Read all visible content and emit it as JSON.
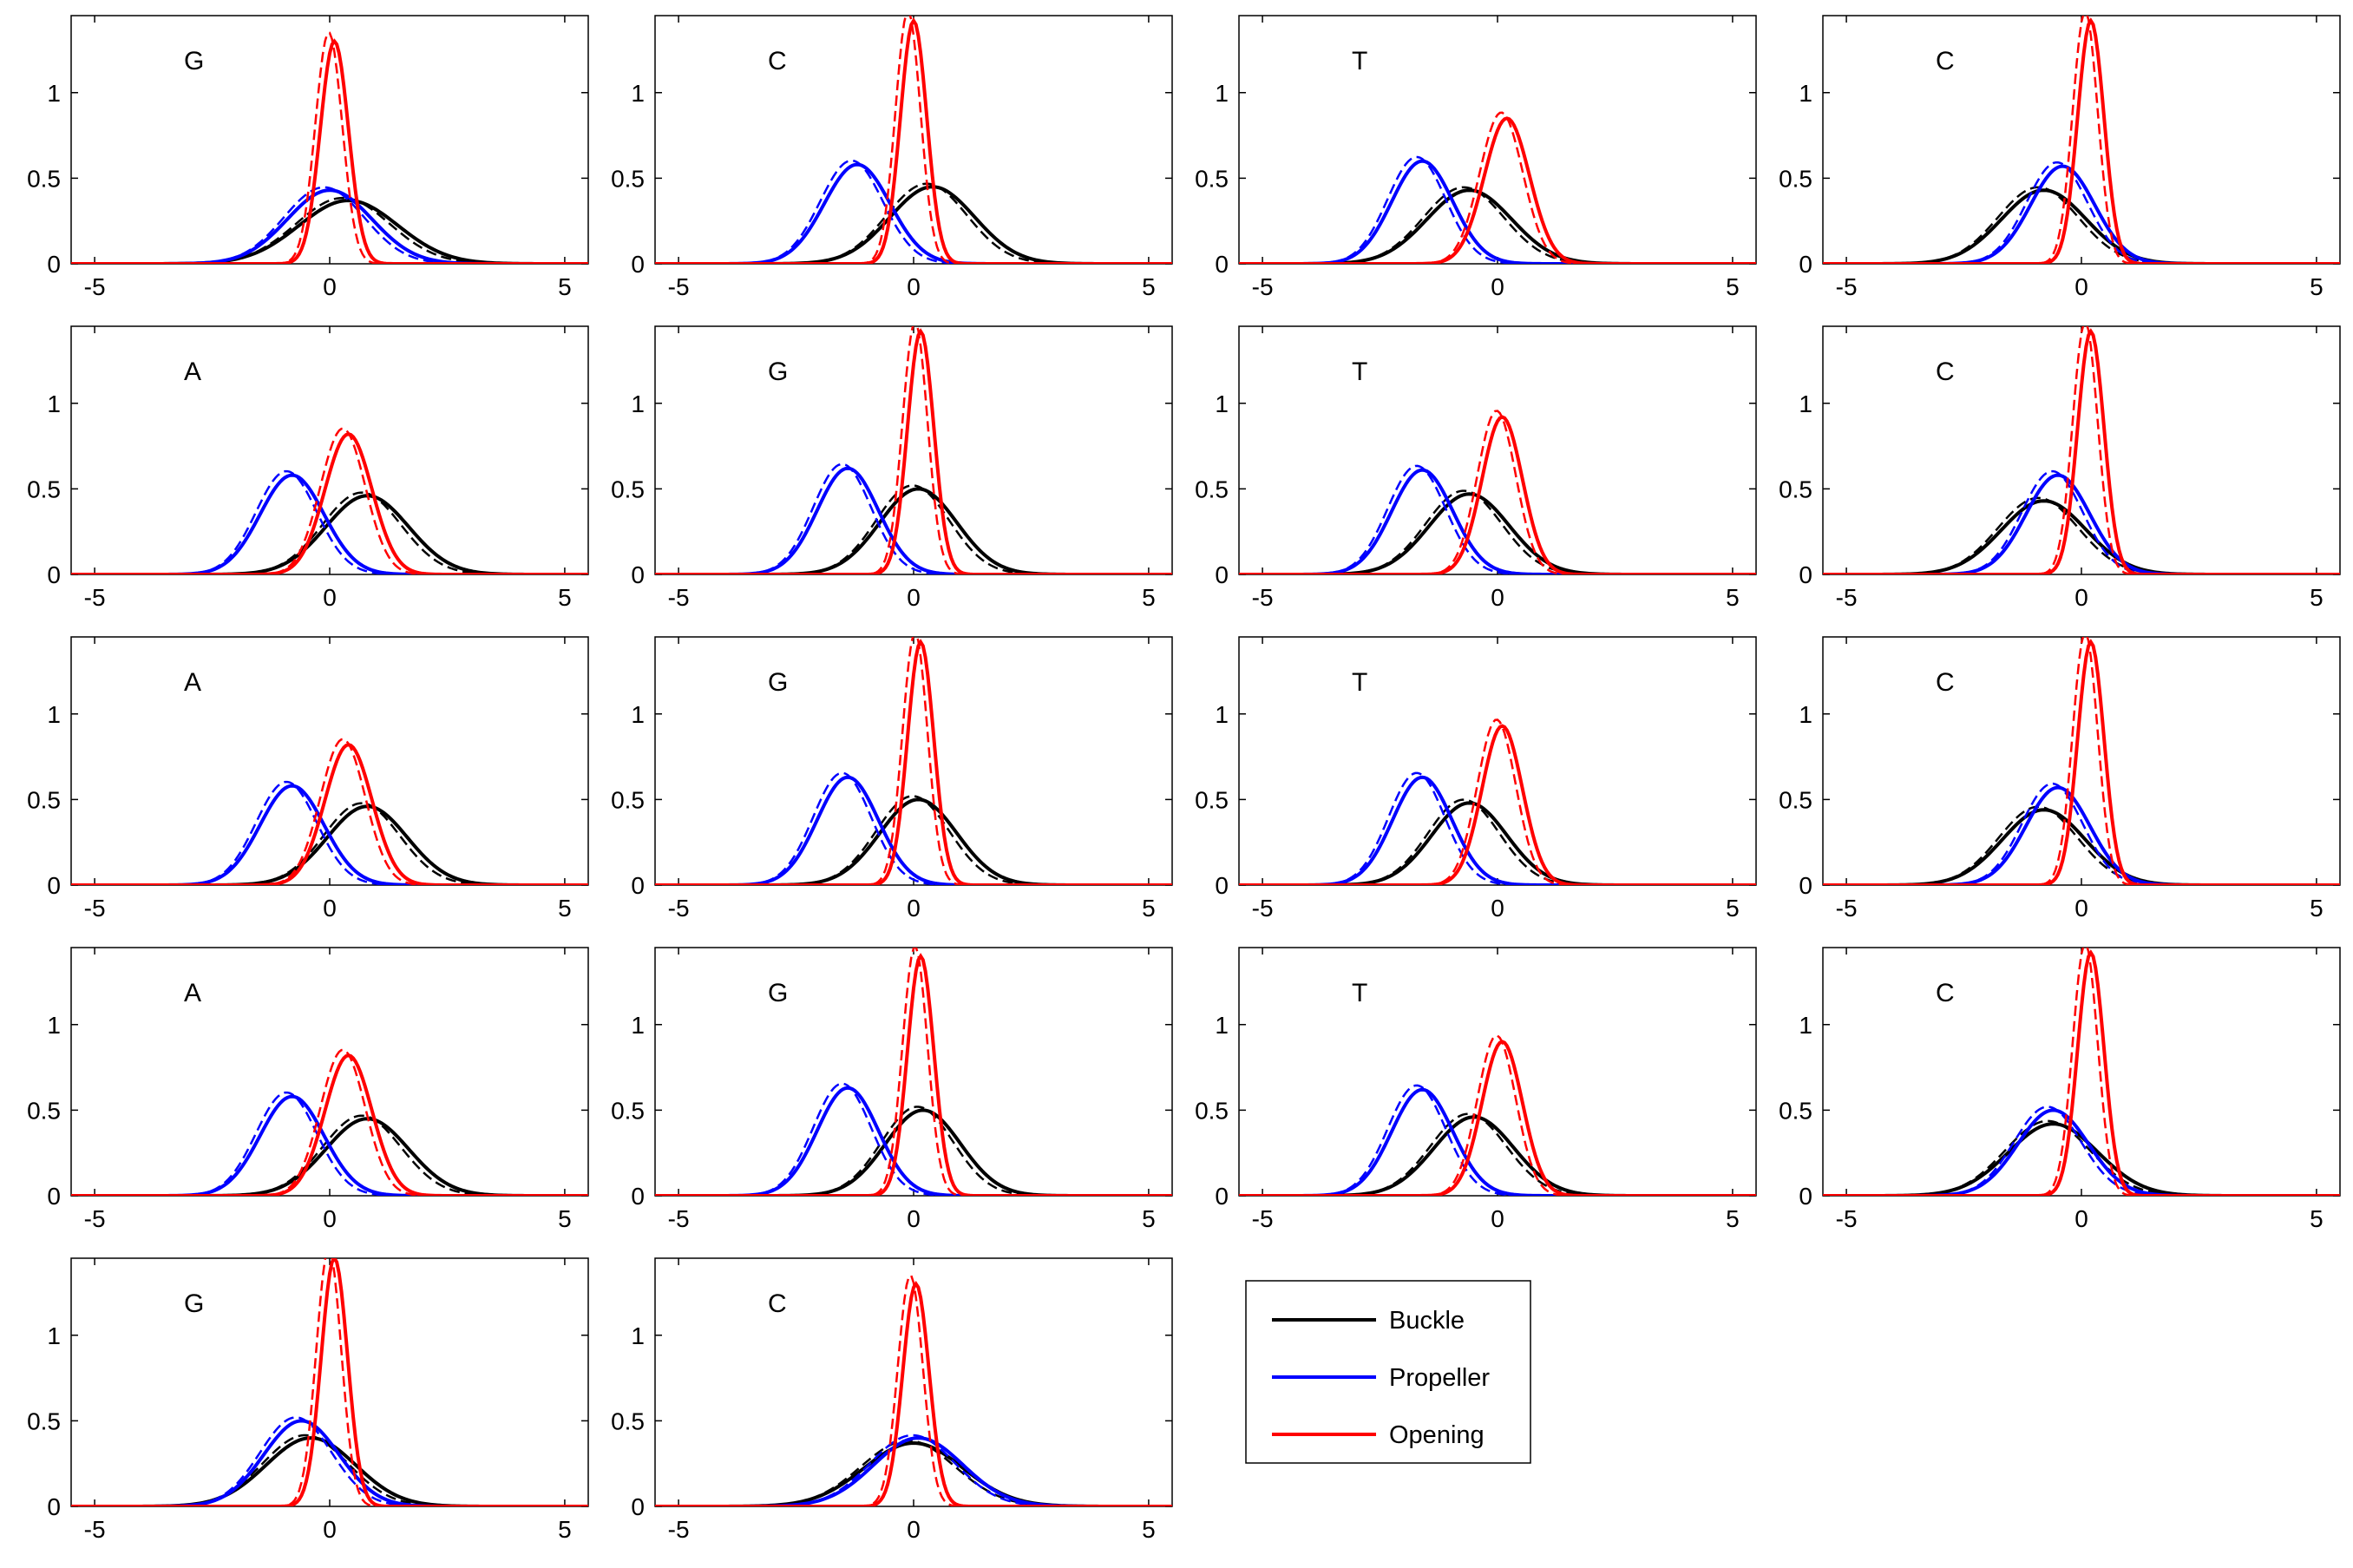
{
  "figure": {
    "legend": [
      {
        "name": "Buckle",
        "color": "#000000"
      },
      {
        "name": "Propeller",
        "color": "#0000ff"
      },
      {
        "name": "Opening",
        "color": "#ff0000"
      }
    ]
  },
  "chart_data": [
    {
      "type": "line",
      "title": "G",
      "xlim": [
        -5.5,
        5.5
      ],
      "ylim": [
        0,
        1.45
      ],
      "xticks": [
        -5,
        0,
        5
      ],
      "yticks": [
        0,
        0.5,
        1
      ],
      "grid": false,
      "series": [
        {
          "name": "Buckle",
          "color": "#000000",
          "mu": 0.4,
          "peak": 0.37,
          "sigma": 1.05
        },
        {
          "name": "Propeller",
          "color": "#0000ff",
          "mu": 0.0,
          "peak": 0.43,
          "sigma": 0.9
        },
        {
          "name": "Opening",
          "color": "#ff0000",
          "mu": 0.1,
          "peak": 1.3,
          "sigma": 0.3
        }
      ]
    },
    {
      "type": "line",
      "title": "C",
      "xlim": [
        -5.5,
        5.5
      ],
      "ylim": [
        0,
        1.45
      ],
      "xticks": [
        -5,
        0,
        5
      ],
      "yticks": [
        0,
        0.5,
        1
      ],
      "grid": false,
      "series": [
        {
          "name": "Buckle",
          "color": "#000000",
          "mu": 0.4,
          "peak": 0.45,
          "sigma": 0.9
        },
        {
          "name": "Propeller",
          "color": "#0000ff",
          "mu": -1.2,
          "peak": 0.58,
          "sigma": 0.7
        },
        {
          "name": "Opening",
          "color": "#ff0000",
          "mu": 0.0,
          "peak": 1.42,
          "sigma": 0.28
        }
      ]
    },
    {
      "type": "line",
      "title": "T",
      "xlim": [
        -5.5,
        5.5
      ],
      "ylim": [
        0,
        1.45
      ],
      "xticks": [
        -5,
        0,
        5
      ],
      "yticks": [
        0,
        0.5,
        1
      ],
      "grid": false,
      "series": [
        {
          "name": "Buckle",
          "color": "#000000",
          "mu": -0.6,
          "peak": 0.43,
          "sigma": 0.9
        },
        {
          "name": "Propeller",
          "color": "#0000ff",
          "mu": -1.6,
          "peak": 0.6,
          "sigma": 0.65
        },
        {
          "name": "Opening",
          "color": "#ff0000",
          "mu": 0.2,
          "peak": 0.85,
          "sigma": 0.48
        }
      ]
    },
    {
      "type": "line",
      "title": "C",
      "xlim": [
        -5.5,
        5.5
      ],
      "ylim": [
        0,
        1.45
      ],
      "xticks": [
        -5,
        0,
        5
      ],
      "yticks": [
        0,
        0.5,
        1
      ],
      "grid": false,
      "series": [
        {
          "name": "Buckle",
          "color": "#000000",
          "mu": -0.8,
          "peak": 0.43,
          "sigma": 0.9
        },
        {
          "name": "Propeller",
          "color": "#0000ff",
          "mu": -0.4,
          "peak": 0.57,
          "sigma": 0.68
        },
        {
          "name": "Opening",
          "color": "#ff0000",
          "mu": 0.2,
          "peak": 1.42,
          "sigma": 0.28
        }
      ]
    },
    {
      "type": "line",
      "title": "A",
      "xlim": [
        -5.5,
        5.5
      ],
      "ylim": [
        0,
        1.45
      ],
      "xticks": [
        -5,
        0,
        5
      ],
      "yticks": [
        0,
        0.5,
        1
      ],
      "grid": false,
      "series": [
        {
          "name": "Buckle",
          "color": "#000000",
          "mu": 0.8,
          "peak": 0.46,
          "sigma": 0.88
        },
        {
          "name": "Propeller",
          "color": "#0000ff",
          "mu": -0.8,
          "peak": 0.58,
          "sigma": 0.68
        },
        {
          "name": "Opening",
          "color": "#ff0000",
          "mu": 0.4,
          "peak": 0.82,
          "sigma": 0.5
        }
      ]
    },
    {
      "type": "line",
      "title": "G",
      "xlim": [
        -5.5,
        5.5
      ],
      "ylim": [
        0,
        1.45
      ],
      "xticks": [
        -5,
        0,
        5
      ],
      "yticks": [
        0,
        0.5,
        1
      ],
      "grid": false,
      "series": [
        {
          "name": "Buckle",
          "color": "#000000",
          "mu": 0.1,
          "peak": 0.5,
          "sigma": 0.82
        },
        {
          "name": "Propeller",
          "color": "#0000ff",
          "mu": -1.4,
          "peak": 0.62,
          "sigma": 0.65
        },
        {
          "name": "Opening",
          "color": "#ff0000",
          "mu": 0.15,
          "peak": 1.42,
          "sigma": 0.28
        }
      ]
    },
    {
      "type": "line",
      "title": "T",
      "xlim": [
        -5.5,
        5.5
      ],
      "ylim": [
        0,
        1.45
      ],
      "xticks": [
        -5,
        0,
        5
      ],
      "yticks": [
        0,
        0.5,
        1
      ],
      "grid": false,
      "series": [
        {
          "name": "Buckle",
          "color": "#000000",
          "mu": -0.6,
          "peak": 0.47,
          "sigma": 0.85
        },
        {
          "name": "Propeller",
          "color": "#0000ff",
          "mu": -1.6,
          "peak": 0.61,
          "sigma": 0.65
        },
        {
          "name": "Opening",
          "color": "#ff0000",
          "mu": 0.1,
          "peak": 0.92,
          "sigma": 0.43
        }
      ]
    },
    {
      "type": "line",
      "title": "C",
      "xlim": [
        -5.5,
        5.5
      ],
      "ylim": [
        0,
        1.45
      ],
      "xticks": [
        -5,
        0,
        5
      ],
      "yticks": [
        0,
        0.5,
        1
      ],
      "grid": false,
      "series": [
        {
          "name": "Buckle",
          "color": "#000000",
          "mu": -0.8,
          "peak": 0.43,
          "sigma": 0.9
        },
        {
          "name": "Propeller",
          "color": "#0000ff",
          "mu": -0.5,
          "peak": 0.58,
          "sigma": 0.68
        },
        {
          "name": "Opening",
          "color": "#ff0000",
          "mu": 0.2,
          "peak": 1.42,
          "sigma": 0.28
        }
      ]
    },
    {
      "type": "line",
      "title": "A",
      "xlim": [
        -5.5,
        5.5
      ],
      "ylim": [
        0,
        1.45
      ],
      "xticks": [
        -5,
        0,
        5
      ],
      "yticks": [
        0,
        0.5,
        1
      ],
      "grid": false,
      "series": [
        {
          "name": "Buckle",
          "color": "#000000",
          "mu": 0.8,
          "peak": 0.46,
          "sigma": 0.85
        },
        {
          "name": "Propeller",
          "color": "#0000ff",
          "mu": -0.8,
          "peak": 0.58,
          "sigma": 0.68
        },
        {
          "name": "Opening",
          "color": "#ff0000",
          "mu": 0.4,
          "peak": 0.82,
          "sigma": 0.5
        }
      ]
    },
    {
      "type": "line",
      "title": "G",
      "xlim": [
        -5.5,
        5.5
      ],
      "ylim": [
        0,
        1.45
      ],
      "xticks": [
        -5,
        0,
        5
      ],
      "yticks": [
        0,
        0.5,
        1
      ],
      "grid": false,
      "series": [
        {
          "name": "Buckle",
          "color": "#000000",
          "mu": 0.1,
          "peak": 0.5,
          "sigma": 0.82
        },
        {
          "name": "Propeller",
          "color": "#0000ff",
          "mu": -1.4,
          "peak": 0.63,
          "sigma": 0.65
        },
        {
          "name": "Opening",
          "color": "#ff0000",
          "mu": 0.15,
          "peak": 1.42,
          "sigma": 0.28
        }
      ]
    },
    {
      "type": "line",
      "title": "T",
      "xlim": [
        -5.5,
        5.5
      ],
      "ylim": [
        0,
        1.45
      ],
      "xticks": [
        -5,
        0,
        5
      ],
      "yticks": [
        0,
        0.5,
        1
      ],
      "grid": false,
      "series": [
        {
          "name": "Buckle",
          "color": "#000000",
          "mu": -0.6,
          "peak": 0.48,
          "sigma": 0.8
        },
        {
          "name": "Propeller",
          "color": "#0000ff",
          "mu": -1.6,
          "peak": 0.63,
          "sigma": 0.63
        },
        {
          "name": "Opening",
          "color": "#ff0000",
          "mu": 0.1,
          "peak": 0.93,
          "sigma": 0.43
        }
      ]
    },
    {
      "type": "line",
      "title": "C",
      "xlim": [
        -5.5,
        5.5
      ],
      "ylim": [
        0,
        1.45
      ],
      "xticks": [
        -5,
        0,
        5
      ],
      "yticks": [
        0,
        0.5,
        1
      ],
      "grid": false,
      "series": [
        {
          "name": "Buckle",
          "color": "#000000",
          "mu": -0.8,
          "peak": 0.44,
          "sigma": 0.88
        },
        {
          "name": "Propeller",
          "color": "#0000ff",
          "mu": -0.5,
          "peak": 0.57,
          "sigma": 0.68
        },
        {
          "name": "Opening",
          "color": "#ff0000",
          "mu": 0.2,
          "peak": 1.42,
          "sigma": 0.28
        }
      ]
    },
    {
      "type": "line",
      "title": "A",
      "xlim": [
        -5.5,
        5.5
      ],
      "ylim": [
        0,
        1.45
      ],
      "xticks": [
        -5,
        0,
        5
      ],
      "yticks": [
        0,
        0.5,
        1
      ],
      "grid": false,
      "series": [
        {
          "name": "Buckle",
          "color": "#000000",
          "mu": 0.8,
          "peak": 0.45,
          "sigma": 0.88
        },
        {
          "name": "Propeller",
          "color": "#0000ff",
          "mu": -0.8,
          "peak": 0.58,
          "sigma": 0.68
        },
        {
          "name": "Opening",
          "color": "#ff0000",
          "mu": 0.4,
          "peak": 0.82,
          "sigma": 0.5
        }
      ]
    },
    {
      "type": "line",
      "title": "G",
      "xlim": [
        -5.5,
        5.5
      ],
      "ylim": [
        0,
        1.45
      ],
      "xticks": [
        -5,
        0,
        5
      ],
      "yticks": [
        0,
        0.5,
        1
      ],
      "grid": false,
      "series": [
        {
          "name": "Buckle",
          "color": "#000000",
          "mu": 0.2,
          "peak": 0.5,
          "sigma": 0.8
        },
        {
          "name": "Propeller",
          "color": "#0000ff",
          "mu": -1.4,
          "peak": 0.63,
          "sigma": 0.65
        },
        {
          "name": "Opening",
          "color": "#ff0000",
          "mu": 0.15,
          "peak": 1.4,
          "sigma": 0.28
        }
      ]
    },
    {
      "type": "line",
      "title": "T",
      "xlim": [
        -5.5,
        5.5
      ],
      "ylim": [
        0,
        1.45
      ],
      "xticks": [
        -5,
        0,
        5
      ],
      "yticks": [
        0,
        0.5,
        1
      ],
      "grid": false,
      "series": [
        {
          "name": "Buckle",
          "color": "#000000",
          "mu": -0.5,
          "peak": 0.46,
          "sigma": 0.85
        },
        {
          "name": "Propeller",
          "color": "#0000ff",
          "mu": -1.6,
          "peak": 0.62,
          "sigma": 0.65
        },
        {
          "name": "Opening",
          "color": "#ff0000",
          "mu": 0.1,
          "peak": 0.9,
          "sigma": 0.43
        }
      ]
    },
    {
      "type": "line",
      "title": "C",
      "xlim": [
        -5.5,
        5.5
      ],
      "ylim": [
        0,
        1.45
      ],
      "xticks": [
        -5,
        0,
        5
      ],
      "yticks": [
        0,
        0.5,
        1
      ],
      "grid": false,
      "series": [
        {
          "name": "Buckle",
          "color": "#000000",
          "mu": -0.6,
          "peak": 0.42,
          "sigma": 0.95
        },
        {
          "name": "Propeller",
          "color": "#0000ff",
          "mu": -0.6,
          "peak": 0.5,
          "sigma": 0.75
        },
        {
          "name": "Opening",
          "color": "#ff0000",
          "mu": 0.2,
          "peak": 1.42,
          "sigma": 0.28
        }
      ]
    },
    {
      "type": "line",
      "title": "G",
      "xlim": [
        -5.5,
        5.5
      ],
      "ylim": [
        0,
        1.45
      ],
      "xticks": [
        -5,
        0,
        5
      ],
      "yticks": [
        0,
        0.5,
        1
      ],
      "grid": false,
      "series": [
        {
          "name": "Buckle",
          "color": "#000000",
          "mu": -0.4,
          "peak": 0.4,
          "sigma": 0.95
        },
        {
          "name": "Propeller",
          "color": "#0000ff",
          "mu": -0.6,
          "peak": 0.5,
          "sigma": 0.8
        },
        {
          "name": "Opening",
          "color": "#ff0000",
          "mu": 0.1,
          "peak": 1.45,
          "sigma": 0.28
        }
      ]
    },
    {
      "type": "line",
      "title": "C",
      "xlim": [
        -5.5,
        5.5
      ],
      "ylim": [
        0,
        1.45
      ],
      "xticks": [
        -5,
        0,
        5
      ],
      "yticks": [
        0,
        0.5,
        1
      ],
      "grid": false,
      "series": [
        {
          "name": "Buckle",
          "color": "#000000",
          "mu": 0.0,
          "peak": 0.37,
          "sigma": 1.05
        },
        {
          "name": "Propeller",
          "color": "#0000ff",
          "mu": 0.1,
          "peak": 0.4,
          "sigma": 0.95
        },
        {
          "name": "Opening",
          "color": "#ff0000",
          "mu": 0.05,
          "peak": 1.3,
          "sigma": 0.28
        }
      ]
    }
  ]
}
